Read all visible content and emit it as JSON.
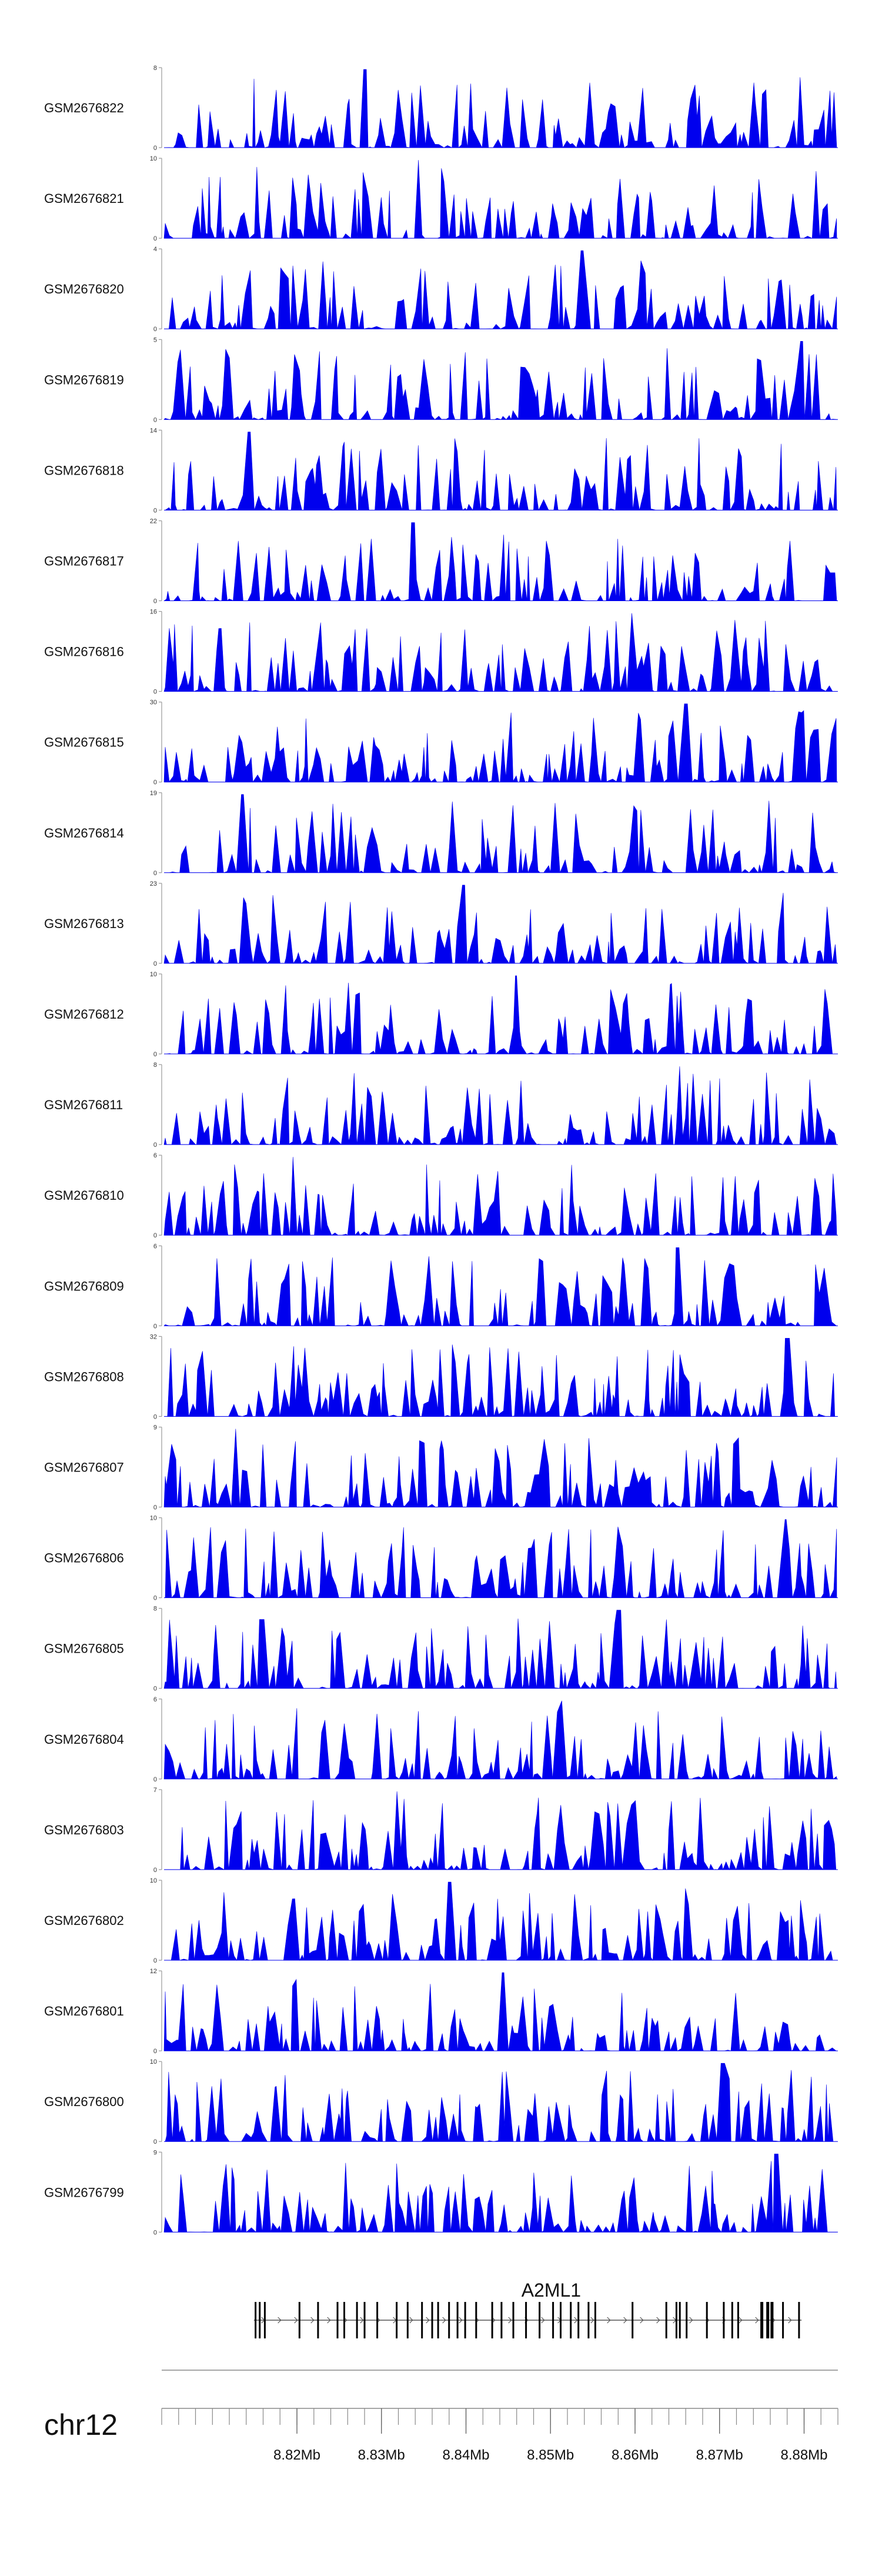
{
  "chart_data": {
    "type": "area",
    "title": "",
    "xlabel": "",
    "ylabel": "",
    "series_color": "#0000ee",
    "x_range_mb": [
      8.804,
      8.884
    ],
    "grid": false,
    "legend": "none",
    "tracks": [
      {
        "name": "GSM2676822",
        "ymax": "8",
        "ymin": "0",
        "seed": 11
      },
      {
        "name": "GSM2676821",
        "ymax": "10",
        "ymin": "0",
        "seed": 23
      },
      {
        "name": "GSM2676820",
        "ymax": "4",
        "ymin": "0",
        "seed": 37
      },
      {
        "name": "GSM2676819",
        "ymax": "5",
        "ymin": "0",
        "seed": 41
      },
      {
        "name": "GSM2676818",
        "ymax": "14",
        "ymin": "0",
        "seed": 53
      },
      {
        "name": "GSM2676817",
        "ymax": "22",
        "ymin": "0",
        "seed": 67
      },
      {
        "name": "GSM2676816",
        "ymax": "16",
        "ymin": "0",
        "seed": 71
      },
      {
        "name": "GSM2676815",
        "ymax": "30",
        "ymin": "0",
        "seed": 83
      },
      {
        "name": "GSM2676814",
        "ymax": "19",
        "ymin": "0",
        "seed": 97
      },
      {
        "name": "GSM2676813",
        "ymax": "23",
        "ymin": "0",
        "seed": 101
      },
      {
        "name": "GSM2676812",
        "ymax": "10",
        "ymin": "0",
        "seed": 113
      },
      {
        "name": "GSM2676811",
        "ymax": "8",
        "ymin": "0",
        "seed": 127
      },
      {
        "name": "GSM2676810",
        "ymax": "6",
        "ymin": "0",
        "seed": 131
      },
      {
        "name": "GSM2676809",
        "ymax": "6",
        "ymin": "0",
        "seed": 149
      },
      {
        "name": "GSM2676808",
        "ymax": "32",
        "ymin": "0",
        "seed": 151
      },
      {
        "name": "GSM2676807",
        "ymax": "9",
        "ymin": "0",
        "seed": 163
      },
      {
        "name": "GSM2676806",
        "ymax": "10",
        "ymin": "0",
        "seed": 173
      },
      {
        "name": "GSM2676805",
        "ymax": "8",
        "ymin": "0",
        "seed": 181
      },
      {
        "name": "GSM2676804",
        "ymax": "6",
        "ymin": "0",
        "seed": 191
      },
      {
        "name": "GSM2676803",
        "ymax": "7",
        "ymin": "0",
        "seed": 199
      },
      {
        "name": "GSM2676802",
        "ymax": "10",
        "ymin": "0",
        "seed": 211
      },
      {
        "name": "GSM2676801",
        "ymax": "12",
        "ymin": "0",
        "seed": 223
      },
      {
        "name": "GSM2676800",
        "ymax": "10",
        "ymin": "0",
        "seed": 227
      },
      {
        "name": "GSM2676799",
        "ymax": "9",
        "ymin": "0",
        "seed": 239
      }
    ],
    "gene": {
      "name": "A2ML1",
      "start_mb": 8.8149,
      "end_mb": 8.8797,
      "strand": "+",
      "exons_mb": [
        8.8151,
        8.8156,
        8.8162,
        8.8203,
        8.8225,
        8.8248,
        8.8256,
        8.8271,
        8.828,
        8.8295,
        8.8318,
        8.8331,
        8.8348,
        8.836,
        8.8367,
        8.838,
        8.839,
        8.8399,
        8.8412,
        8.8431,
        8.8442,
        8.8456,
        8.8471,
        8.8487,
        8.8503,
        8.8512,
        8.8524,
        8.8533,
        8.8545,
        8.8553,
        8.8597,
        8.8637,
        8.8649,
        8.8653,
        8.8661,
        8.8685,
        8.8705,
        8.8715,
        8.8722,
        8.875,
        8.8757,
        8.8762,
        8.8775,
        8.8794
      ]
    },
    "chromosome": "chr12",
    "x_ticks": [
      {
        "label": "8.82Mb",
        "value": 8.82
      },
      {
        "label": "8.83Mb",
        "value": 8.83
      },
      {
        "label": "8.84Mb",
        "value": 8.84
      },
      {
        "label": "8.85Mb",
        "value": 8.85
      },
      {
        "label": "8.86Mb",
        "value": 8.86
      },
      {
        "label": "8.87Mb",
        "value": 8.87
      },
      {
        "label": "8.88Mb",
        "value": 8.88
      }
    ],
    "minor_tick_step_mb": 0.002
  }
}
